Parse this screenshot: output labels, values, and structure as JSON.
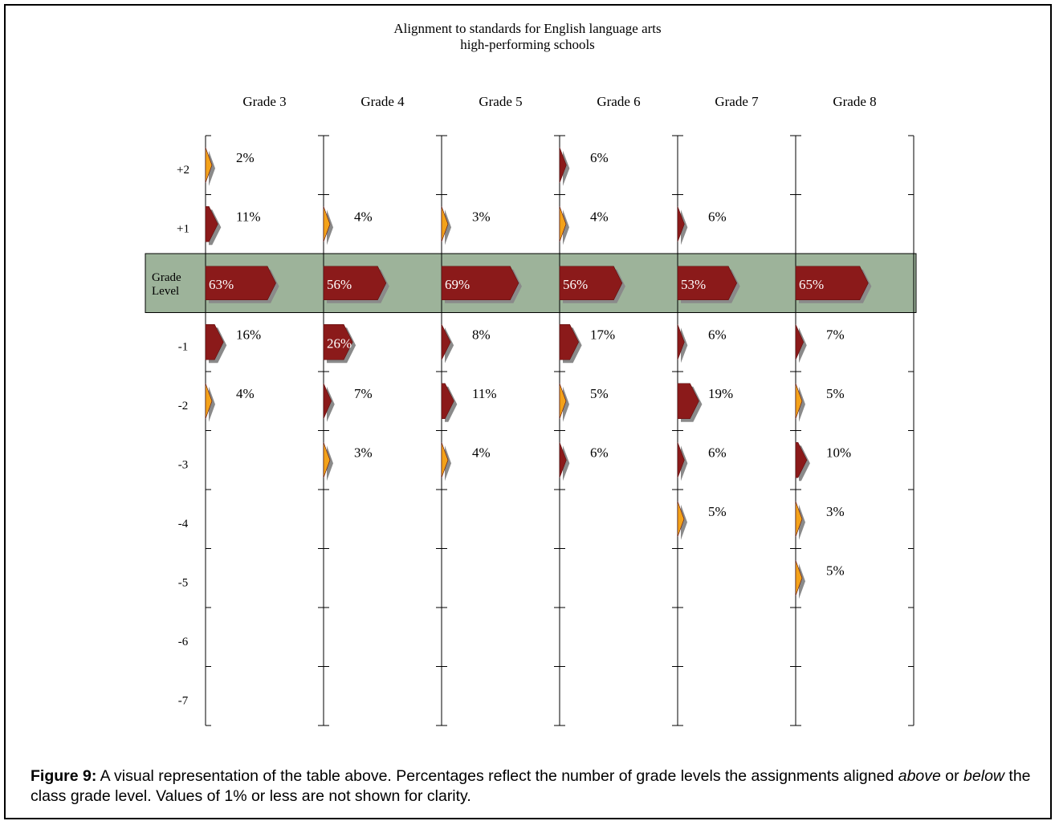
{
  "chart_data": {
    "type": "bar",
    "title_lines": [
      "Alignment to standards for English language arts",
      "high-performing schools"
    ],
    "grades": [
      "Grade 3",
      "Grade 4",
      "Grade 5",
      "Grade 6",
      "Grade 7",
      "Grade 8"
    ],
    "levels": [
      2,
      1,
      0,
      -1,
      -2,
      -3,
      -4,
      -5,
      -6,
      -7
    ],
    "level_labels": [
      "+2",
      "+1",
      "Grade Level",
      "-1",
      "-2",
      "-3",
      "-4",
      "-5",
      "-6",
      "-7"
    ],
    "series": [
      {
        "grade": "Grade 3",
        "values": [
          {
            "level": 2,
            "value": 2,
            "label": "2%",
            "color": "orange"
          },
          {
            "level": 1,
            "value": 11,
            "label": "11%",
            "color": "red"
          },
          {
            "level": 0,
            "value": 63,
            "label": "63%",
            "color": "red"
          },
          {
            "level": -1,
            "value": 16,
            "label": "16%",
            "color": "red"
          },
          {
            "level": -2,
            "value": 4,
            "label": "4%",
            "color": "orange"
          }
        ]
      },
      {
        "grade": "Grade 4",
        "values": [
          {
            "level": 1,
            "value": 4,
            "label": "4%",
            "color": "orange"
          },
          {
            "level": 0,
            "value": 56,
            "label": "56%",
            "color": "red"
          },
          {
            "level": -1,
            "value": 26,
            "label": "26%",
            "color": "red"
          },
          {
            "level": -2,
            "value": 7,
            "label": "7%",
            "color": "red"
          },
          {
            "level": -3,
            "value": 3,
            "label": "3%",
            "color": "orange"
          }
        ]
      },
      {
        "grade": "Grade 5",
        "values": [
          {
            "level": 1,
            "value": 3,
            "label": "3%",
            "color": "orange"
          },
          {
            "level": 0,
            "value": 69,
            "label": "69%",
            "color": "red"
          },
          {
            "level": -1,
            "value": 8,
            "label": "8%",
            "color": "red"
          },
          {
            "level": -2,
            "value": 11,
            "label": "11%",
            "color": "red"
          },
          {
            "level": -3,
            "value": 4,
            "label": "4%",
            "color": "orange"
          }
        ]
      },
      {
        "grade": "Grade 6",
        "values": [
          {
            "level": 2,
            "value": 6,
            "label": "6%",
            "color": "red"
          },
          {
            "level": 1,
            "value": 4,
            "label": "4%",
            "color": "orange"
          },
          {
            "level": 0,
            "value": 56,
            "label": "56%",
            "color": "red"
          },
          {
            "level": -1,
            "value": 17,
            "label": "17%",
            "color": "red"
          },
          {
            "level": -2,
            "value": 5,
            "label": "5%",
            "color": "orange"
          },
          {
            "level": -3,
            "value": 6,
            "label": "6%",
            "color": "red"
          }
        ]
      },
      {
        "grade": "Grade 7",
        "values": [
          {
            "level": 1,
            "value": 6,
            "label": "6%",
            "color": "red"
          },
          {
            "level": 0,
            "value": 53,
            "label": "53%",
            "color": "red"
          },
          {
            "level": -1,
            "value": 6,
            "label": "6%",
            "color": "red"
          },
          {
            "level": -2,
            "value": 19,
            "label": "19%",
            "color": "red"
          },
          {
            "level": -3,
            "value": 6,
            "label": "6%",
            "color": "red"
          },
          {
            "level": -4,
            "value": 5,
            "label": "5%",
            "color": "orange"
          }
        ]
      },
      {
        "grade": "Grade 8",
        "values": [
          {
            "level": 0,
            "value": 65,
            "label": "65%",
            "color": "red"
          },
          {
            "level": -1,
            "value": 7,
            "label": "7%",
            "color": "red"
          },
          {
            "level": -2,
            "value": 5,
            "label": "5%",
            "color": "orange"
          },
          {
            "level": -3,
            "value": 10,
            "label": "10%",
            "color": "red"
          },
          {
            "level": -4,
            "value": 3,
            "label": "3%",
            "color": "orange"
          },
          {
            "level": -5,
            "value": 5,
            "label": "5%",
            "color": "orange"
          }
        ]
      }
    ],
    "colors": {
      "red": "#8b1a1a",
      "orange": "#f3a21a",
      "band": "#9db39a",
      "shadow": "#8a8a8a"
    }
  },
  "caption": {
    "figure_label": "Figure 9:",
    "text_part1": "  A visual representation of the table above. Percentages reflect the number of grade levels the assignments aligned ",
    "above": "above",
    "text_part2": " or ",
    "below": "below",
    "text_part3": " the class grade level. Values of 1% or less are not shown for clarity."
  }
}
